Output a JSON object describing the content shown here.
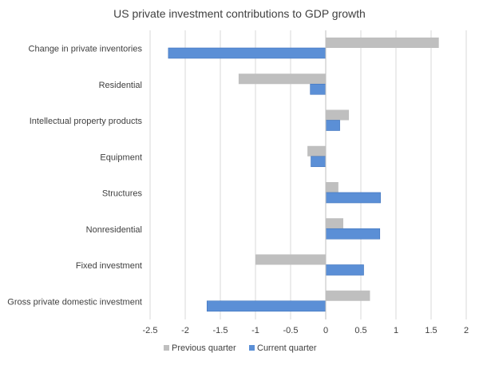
{
  "chart_data": {
    "type": "bar",
    "orientation": "horizontal",
    "title": "US private investment contributions to GDP growth",
    "categories": [
      "Change in private inventories",
      "Residential",
      "Intellectual property products",
      "Equipment",
      "Structures",
      "Nonresidential",
      "Fixed investment",
      "Gross private domestic investment"
    ],
    "series": [
      {
        "name": "Previous quarter",
        "color": "#bfbfbf",
        "values": [
          1.61,
          -1.24,
          0.33,
          -0.26,
          0.18,
          0.25,
          -1.0,
          0.63
        ]
      },
      {
        "name": "Current quarter",
        "color": "#5b8fd6",
        "values": [
          -2.24,
          -0.22,
          0.2,
          -0.21,
          0.78,
          0.77,
          0.54,
          -1.69
        ]
      }
    ],
    "xlim": [
      -2.5,
      2
    ],
    "xticks": [
      -2.5,
      -2,
      -1.5,
      -1,
      -0.5,
      0,
      0.5,
      1,
      1.5,
      2
    ],
    "xtick_labels": [
      "-2.5",
      "-2",
      "-1.5",
      "-1",
      "-0.5",
      "0",
      "0.5",
      "1",
      "1.5",
      "2"
    ],
    "grid": true,
    "legend_position": "bottom"
  }
}
